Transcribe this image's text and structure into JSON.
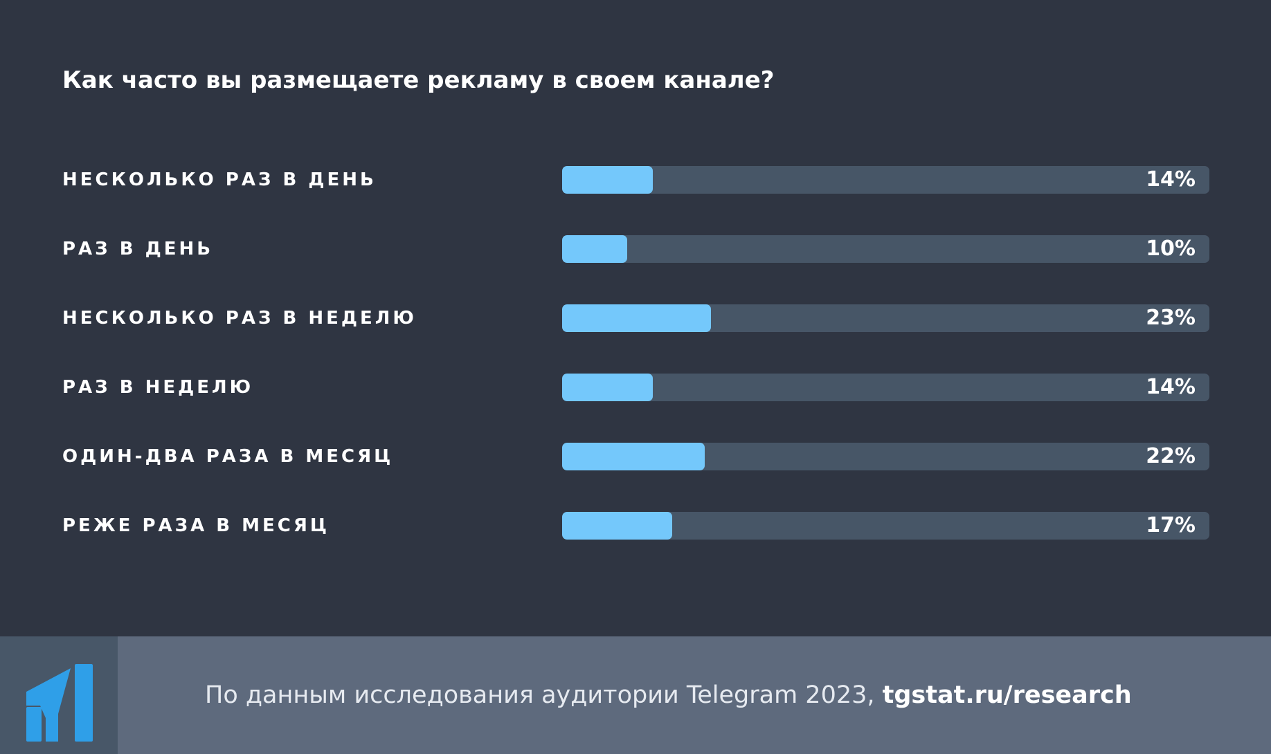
{
  "colors": {
    "background": "#2f3542",
    "track": "#475667",
    "bar": "#74c8fb",
    "footer": "#5e6a7d",
    "logo_panel": "#485768",
    "logo_blue": "#2f9fe8",
    "text": "#ffffff"
  },
  "chart_data": {
    "type": "bar",
    "orientation": "horizontal",
    "title": "Как часто вы размещаете рекламу в своем канале?",
    "categories": [
      "НЕСКОЛЬКО РАЗ В ДЕНЬ",
      "РАЗ В ДЕНЬ",
      "НЕСКОЛЬКО РАЗ В НЕДЕЛЮ",
      "РАЗ В НЕДЕЛЮ",
      "ОДИН-ДВА РАЗА В МЕСЯЦ",
      "РЕЖЕ РАЗА В МЕСЯЦ"
    ],
    "values": [
      14,
      10,
      23,
      14,
      22,
      17
    ],
    "value_labels": [
      "14%",
      "10%",
      "23%",
      "14%",
      "22%",
      "17%"
    ],
    "unit": "%",
    "xlim": [
      0,
      100
    ],
    "grid": false,
    "legend": false
  },
  "footer": {
    "logo_icon": "tgstat-logo-icon",
    "source_text": "По данным исследования аудитории Telegram 2023, ",
    "source_link": "tgstat.ru/research"
  }
}
